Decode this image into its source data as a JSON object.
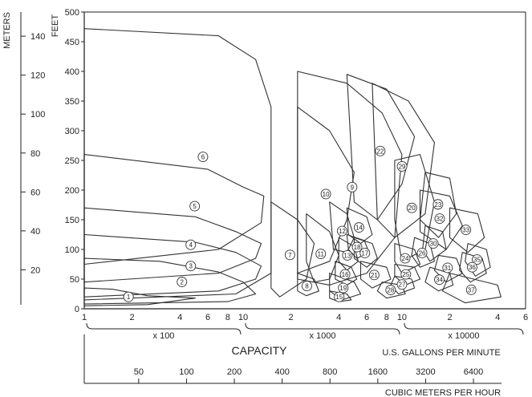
{
  "chart_data": {
    "type": "line",
    "y_axis_feet": {
      "label": "FEET",
      "ylim": [
        0,
        500
      ],
      "ticks": [
        0,
        50,
        100,
        150,
        200,
        250,
        300,
        350,
        400,
        450,
        500
      ]
    },
    "y_axis_meters": {
      "label": "METERS",
      "ticks": [
        20,
        40,
        60,
        80,
        100,
        120,
        140
      ]
    },
    "x_axis": {
      "scale": "log",
      "range_gpm": [
        100,
        60000
      ],
      "decade_labels": [
        {
          "ticks": [
            "1",
            "2",
            "4",
            "6",
            "8",
            "10"
          ],
          "multiplier": "x 100"
        },
        {
          "ticks": [
            "2",
            "4",
            "6",
            "8",
            "10"
          ],
          "multiplier": "x 1000"
        },
        {
          "ticks": [
            "2",
            "4",
            "6"
          ],
          "multiplier": "x 10000"
        }
      ],
      "title": "CAPACITY",
      "unit_gpm": "U.S. GALLONS PER MINUTE",
      "unit_m3h": "CUBIC METERS PER HOUR",
      "m3h_ticks": [
        {
          "label": "50",
          "m3h": 50
        },
        {
          "label": "100",
          "m3h": 100
        },
        {
          "label": "200",
          "m3h": 200
        },
        {
          "label": "400",
          "m3h": 400
        },
        {
          "label": "800",
          "m3h": 800
        },
        {
          "label": "1600",
          "m3h": 1600
        },
        {
          "label": "3200",
          "m3h": 3200
        },
        {
          "label": "6400",
          "m3h": 6400
        }
      ]
    },
    "series": [
      {
        "name": "1",
        "points": [
          [
            100,
            35
          ],
          [
            150,
            33
          ],
          [
            250,
            22
          ],
          [
            500,
            18
          ],
          [
            250,
            7
          ],
          [
            100,
            5
          ]
        ]
      },
      {
        "name": "2",
        "points": [
          [
            100,
            85
          ],
          [
            300,
            80
          ],
          [
            700,
            62
          ],
          [
            1000,
            45
          ],
          [
            1200,
            25
          ],
          [
            800,
            12
          ],
          [
            100,
            8
          ]
        ]
      },
      {
        "name": "3",
        "points": [
          [
            100,
            125
          ],
          [
            500,
            112
          ],
          [
            900,
            95
          ],
          [
            1300,
            72
          ],
          [
            1200,
            50
          ],
          [
            700,
            30
          ],
          [
            100,
            20
          ]
        ]
      },
      {
        "name": "4",
        "points": [
          [
            100,
            170
          ],
          [
            500,
            155
          ],
          [
            900,
            130
          ],
          [
            1300,
            110
          ],
          [
            1200,
            85
          ],
          [
            700,
            60
          ],
          [
            100,
            45
          ]
        ]
      },
      {
        "name": "5",
        "points": [
          [
            100,
            260
          ],
          [
            600,
            235
          ],
          [
            1000,
            205
          ],
          [
            1350,
            190
          ],
          [
            1300,
            145
          ],
          [
            700,
            100
          ],
          [
            100,
            75
          ]
        ]
      },
      {
        "name": "6",
        "points": [
          [
            100,
            472
          ],
          [
            700,
            460
          ],
          [
            1200,
            420
          ],
          [
            1500,
            340
          ],
          [
            1500,
            60
          ],
          [
            900,
            25
          ],
          [
            100,
            15
          ]
        ]
      },
      {
        "name": "7",
        "points": [
          [
            1500,
            180
          ],
          [
            2200,
            150
          ],
          [
            2800,
            110
          ],
          [
            2500,
            50
          ],
          [
            1700,
            20
          ],
          [
            1500,
            35
          ]
        ]
      },
      {
        "name": "8",
        "points": [
          [
            2200,
            60
          ],
          [
            2800,
            50
          ],
          [
            3000,
            30
          ],
          [
            2500,
            22
          ],
          [
            2200,
            30
          ]
        ]
      },
      {
        "name": "9",
        "points": [
          [
            2200,
            400
          ],
          [
            4500,
            380
          ],
          [
            7500,
            330
          ],
          [
            10000,
            260
          ],
          [
            9000,
            120
          ],
          [
            6000,
            60
          ],
          [
            3500,
            40
          ],
          [
            2200,
            50
          ]
        ]
      },
      {
        "name": "10",
        "points": [
          [
            2200,
            340
          ],
          [
            3500,
            300
          ],
          [
            5000,
            230
          ],
          [
            4500,
            150
          ],
          [
            3500,
            80
          ],
          [
            2200,
            60
          ]
        ]
      },
      {
        "name": "11",
        "points": [
          [
            2500,
            160
          ],
          [
            3500,
            130
          ],
          [
            4000,
            90
          ],
          [
            3500,
            50
          ],
          [
            2800,
            45
          ],
          [
            2500,
            80
          ]
        ]
      },
      {
        "name": "12",
        "points": [
          [
            3500,
            180
          ],
          [
            4500,
            160
          ],
          [
            5000,
            120
          ],
          [
            4500,
            95
          ],
          [
            3700,
            100
          ]
        ]
      },
      {
        "name": "13",
        "points": [
          [
            4000,
            120
          ],
          [
            5000,
            105
          ],
          [
            5300,
            80
          ],
          [
            4500,
            65
          ],
          [
            4000,
            80
          ]
        ]
      },
      {
        "name": "14",
        "points": [
          [
            4500,
            170
          ],
          [
            6000,
            155
          ],
          [
            6500,
            125
          ],
          [
            5500,
            110
          ],
          [
            4600,
            125
          ]
        ]
      },
      {
        "name": "15",
        "points": [
          [
            3500,
            30
          ],
          [
            4500,
            25
          ],
          [
            4800,
            15
          ],
          [
            4000,
            12
          ],
          [
            3500,
            18
          ]
        ]
      },
      {
        "name": "16",
        "points": [
          [
            3800,
            80
          ],
          [
            4800,
            70
          ],
          [
            5200,
            50
          ],
          [
            4500,
            40
          ],
          [
            3800,
            50
          ]
        ]
      },
      {
        "name": "17",
        "points": [
          [
            5000,
            120
          ],
          [
            6500,
            110
          ],
          [
            7000,
            85
          ],
          [
            6000,
            70
          ],
          [
            5000,
            85
          ]
        ]
      },
      {
        "name": "18",
        "points": [
          [
            4500,
            125
          ],
          [
            5800,
            115
          ],
          [
            6200,
            95
          ],
          [
            5200,
            85
          ],
          [
            4600,
            100
          ]
        ]
      },
      {
        "name": "19",
        "points": [
          [
            3500,
            60
          ],
          [
            5000,
            45
          ],
          [
            5500,
            25
          ],
          [
            4200,
            15
          ],
          [
            3500,
            30
          ]
        ]
      },
      {
        "name": "20",
        "points": [
          [
            9000,
            250
          ],
          [
            13000,
            260
          ],
          [
            16000,
            180
          ],
          [
            14000,
            100
          ],
          [
            10000,
            80
          ],
          [
            9000,
            150
          ]
        ]
      },
      {
        "name": "21",
        "points": [
          [
            5500,
            80
          ],
          [
            8000,
            70
          ],
          [
            8500,
            50
          ],
          [
            6500,
            35
          ],
          [
            5500,
            50
          ]
        ]
      },
      {
        "name": "22",
        "points": [
          [
            4500,
            395
          ],
          [
            8000,
            370
          ],
          [
            12000,
            290
          ],
          [
            10000,
            210
          ],
          [
            7000,
            150
          ],
          [
            5000,
            180
          ]
        ]
      },
      {
        "name": "23",
        "points": [
          [
            14000,
            230
          ],
          [
            20000,
            220
          ],
          [
            22000,
            160
          ],
          [
            17000,
            120
          ],
          [
            13000,
            150
          ]
        ]
      },
      {
        "name": "24",
        "points": [
          [
            9000,
            110
          ],
          [
            12000,
            100
          ],
          [
            13000,
            75
          ],
          [
            10000,
            60
          ],
          [
            9000,
            80
          ]
        ]
      },
      {
        "name": "25",
        "points": [
          [
            9000,
            75
          ],
          [
            12000,
            70
          ],
          [
            13000,
            50
          ],
          [
            10500,
            40
          ],
          [
            9000,
            55
          ]
        ]
      },
      {
        "name": "26",
        "points": [
          [
            12000,
            120
          ],
          [
            15000,
            110
          ],
          [
            16000,
            80
          ],
          [
            13000,
            70
          ],
          [
            11500,
            90
          ]
        ]
      },
      {
        "name": "27",
        "points": [
          [
            9000,
            55
          ],
          [
            11500,
            50
          ],
          [
            12000,
            35
          ],
          [
            9500,
            25
          ],
          [
            8500,
            40
          ]
        ]
      },
      {
        "name": "28",
        "points": [
          [
            7500,
            45
          ],
          [
            10000,
            40
          ],
          [
            10500,
            25
          ],
          [
            8000,
            18
          ],
          [
            7000,
            30
          ]
        ]
      },
      {
        "name": "29",
        "points": [
          [
            6500,
            380
          ],
          [
            11000,
            350
          ],
          [
            16000,
            280
          ],
          [
            14000,
            160
          ],
          [
            9000,
            120
          ],
          [
            7000,
            150
          ]
        ]
      },
      {
        "name": "30",
        "points": [
          [
            14000,
            140
          ],
          [
            18000,
            130
          ],
          [
            19000,
            100
          ],
          [
            15000,
            80
          ],
          [
            13500,
            100
          ]
        ]
      },
      {
        "name": "31",
        "points": [
          [
            17000,
            90
          ],
          [
            22000,
            85
          ],
          [
            24000,
            60
          ],
          [
            19000,
            45
          ],
          [
            16000,
            65
          ]
        ]
      },
      {
        "name": "32",
        "points": [
          [
            13000,
            200
          ],
          [
            20000,
            190
          ],
          [
            24000,
            140
          ],
          [
            19000,
            100
          ],
          [
            13000,
            130
          ]
        ]
      },
      {
        "name": "33",
        "points": [
          [
            20000,
            170
          ],
          [
            30000,
            160
          ],
          [
            33000,
            120
          ],
          [
            26000,
            95
          ],
          [
            20000,
            120
          ]
        ]
      },
      {
        "name": "34",
        "points": [
          [
            15000,
            70
          ],
          [
            20000,
            60
          ],
          [
            21000,
            40
          ],
          [
            17000,
            30
          ],
          [
            14000,
            45
          ]
        ]
      },
      {
        "name": "35",
        "points": [
          [
            26000,
            110
          ],
          [
            34000,
            100
          ],
          [
            36000,
            70
          ],
          [
            29000,
            55
          ],
          [
            25000,
            80
          ]
        ]
      },
      {
        "name": "36",
        "points": [
          [
            24000,
            95
          ],
          [
            32000,
            85
          ],
          [
            34000,
            60
          ],
          [
            27000,
            45
          ],
          [
            23000,
            65
          ]
        ]
      },
      {
        "name": "37",
        "points": [
          [
            20000,
            60
          ],
          [
            40000,
            40
          ],
          [
            42000,
            20
          ],
          [
            25000,
            10
          ],
          [
            18000,
            30
          ]
        ]
      }
    ]
  }
}
